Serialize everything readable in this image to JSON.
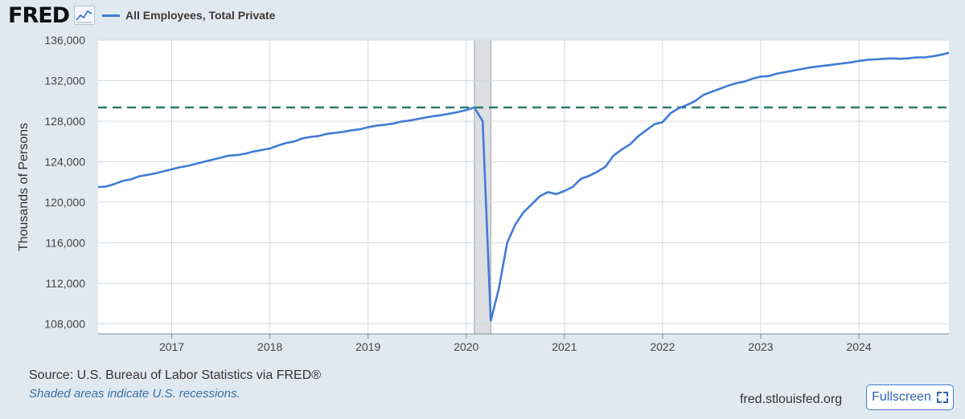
{
  "branding": {
    "logo_text": "FRED"
  },
  "footer": {
    "source": "Source: U.S. Bureau of Labor Statistics via FRED®",
    "note": "Shaded areas indicate U.S. recessions.",
    "site": "fred.stlouisfed.org",
    "fullscreen_label": "Fullscreen"
  },
  "chart_data": {
    "type": "line",
    "title": "",
    "xlabel": "",
    "ylabel": "Thousands of Persons",
    "legend": {
      "position": "top-left"
    },
    "grid": true,
    "xlim": [
      2016.25,
      2024.917
    ],
    "ylim": [
      107000,
      136000
    ],
    "y_ticks": [
      108000,
      112000,
      116000,
      120000,
      124000,
      128000,
      132000,
      136000
    ],
    "y_tick_labels": [
      "108,000",
      "112,000",
      "116,000",
      "120,000",
      "124,000",
      "128,000",
      "132,000",
      "136,000"
    ],
    "x_ticks": [
      2017,
      2018,
      2019,
      2020,
      2021,
      2022,
      2023,
      2024
    ],
    "x_tick_labels": [
      "2017",
      "2018",
      "2019",
      "2020",
      "2021",
      "2022",
      "2023",
      "2024"
    ],
    "recession": {
      "start": 2020.083,
      "end": 2020.25
    },
    "reference_line": {
      "y": 129350,
      "color": "#2f7a6a",
      "style": "dashed"
    },
    "series": [
      {
        "name": "All Employees, Total Private",
        "color": "#3f7bd6",
        "x": [
          2016.25,
          2016.333,
          2016.417,
          2016.5,
          2016.583,
          2016.667,
          2016.75,
          2016.833,
          2016.917,
          2017.0,
          2017.083,
          2017.167,
          2017.25,
          2017.333,
          2017.417,
          2017.5,
          2017.583,
          2017.667,
          2017.75,
          2017.833,
          2017.917,
          2018.0,
          2018.083,
          2018.167,
          2018.25,
          2018.333,
          2018.417,
          2018.5,
          2018.583,
          2018.667,
          2018.75,
          2018.833,
          2018.917,
          2019.0,
          2019.083,
          2019.167,
          2019.25,
          2019.333,
          2019.417,
          2019.5,
          2019.583,
          2019.667,
          2019.75,
          2019.833,
          2019.917,
          2020.0,
          2020.083,
          2020.167,
          2020.25,
          2020.333,
          2020.417,
          2020.5,
          2020.583,
          2020.667,
          2020.75,
          2020.833,
          2020.917,
          2021.0,
          2021.083,
          2021.167,
          2021.25,
          2021.333,
          2021.417,
          2021.5,
          2021.583,
          2021.667,
          2021.75,
          2021.833,
          2021.917,
          2022.0,
          2022.083,
          2022.167,
          2022.25,
          2022.333,
          2022.417,
          2022.5,
          2022.583,
          2022.667,
          2022.75,
          2022.833,
          2022.917,
          2023.0,
          2023.083,
          2023.167,
          2023.25,
          2023.333,
          2023.417,
          2023.5,
          2023.583,
          2023.667,
          2023.75,
          2023.833,
          2023.917,
          2024.0,
          2024.083,
          2024.167,
          2024.25,
          2024.333,
          2024.417,
          2024.5,
          2024.583,
          2024.667,
          2024.75,
          2024.833,
          2024.917
        ],
        "y": [
          121500,
          121550,
          121800,
          122100,
          122250,
          122550,
          122700,
          122850,
          123050,
          123250,
          123450,
          123600,
          123800,
          124000,
          124200,
          124400,
          124600,
          124650,
          124800,
          125000,
          125150,
          125300,
          125600,
          125850,
          126000,
          126300,
          126450,
          126550,
          126750,
          126850,
          126950,
          127100,
          127200,
          127400,
          127550,
          127650,
          127750,
          127950,
          128050,
          128200,
          128350,
          128500,
          128600,
          128750,
          128900,
          129100,
          129350,
          128000,
          108300,
          111500,
          116000,
          117800,
          119000,
          119800,
          120600,
          121000,
          120800,
          121100,
          121500,
          122300,
          122600,
          123000,
          123500,
          124600,
          125200,
          125700,
          126500,
          127100,
          127700,
          127900,
          128800,
          129300,
          129600,
          130000,
          130600,
          130900,
          131200,
          131500,
          131750,
          131900,
          132200,
          132400,
          132450,
          132700,
          132850,
          133000,
          133150,
          133300,
          133400,
          133500,
          133600,
          133700,
          133800,
          133950,
          134050,
          134100,
          134150,
          134200,
          134150,
          134200,
          134300,
          134300,
          134400,
          134550,
          134750
        ]
      }
    ]
  }
}
